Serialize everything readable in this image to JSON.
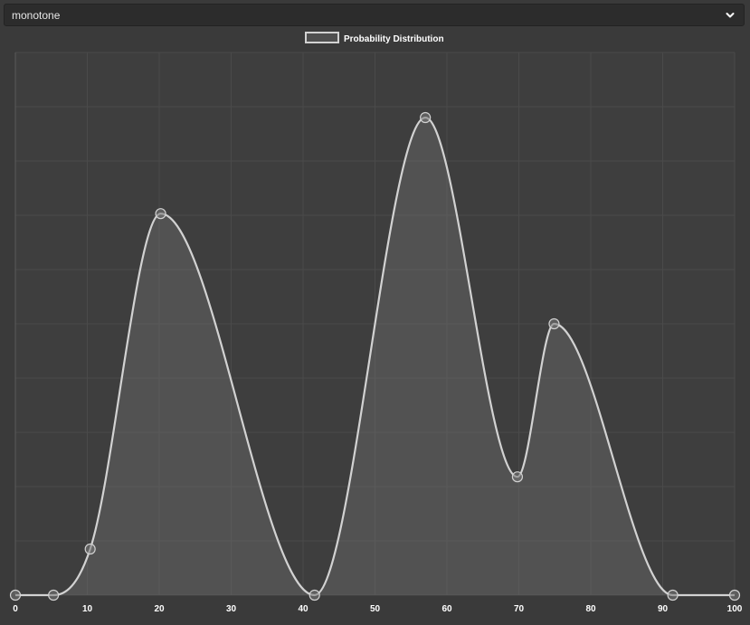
{
  "selector": {
    "value": "monotone"
  },
  "icons": {
    "dropdown": "chevron-down-icon"
  },
  "colors": {
    "background": "#3a3a3a",
    "plot_background": "#3e3e3e",
    "line": "#d2d2d2",
    "fill": "rgba(110,110,110,0.42)",
    "grid": "#4a4a4a",
    "text": "#ffffff"
  },
  "chart_data": {
    "type": "area",
    "interpolation": "monotone",
    "legend": [
      "Probability Distribution"
    ],
    "legend_position": "top-center",
    "grid": true,
    "x_ticks": [
      0,
      10,
      20,
      30,
      40,
      50,
      60,
      70,
      80,
      90,
      100
    ],
    "xlim": [
      0,
      100
    ],
    "ylim": [
      0,
      1
    ],
    "y_tick_labels_shown": false,
    "series": [
      {
        "name": "Probability Distribution",
        "points": [
          {
            "x": 0,
            "y": 0
          },
          {
            "x": 5.3,
            "y": 0
          },
          {
            "x": 10.4,
            "y": 0.085
          },
          {
            "x": 20.2,
            "y": 0.703
          },
          {
            "x": 41.6,
            "y": 0
          },
          {
            "x": 57.0,
            "y": 0.88
          },
          {
            "x": 69.8,
            "y": 0.218
          },
          {
            "x": 74.9,
            "y": 0.5
          },
          {
            "x": 91.4,
            "y": 0
          },
          {
            "x": 100,
            "y": 0
          }
        ]
      }
    ]
  }
}
